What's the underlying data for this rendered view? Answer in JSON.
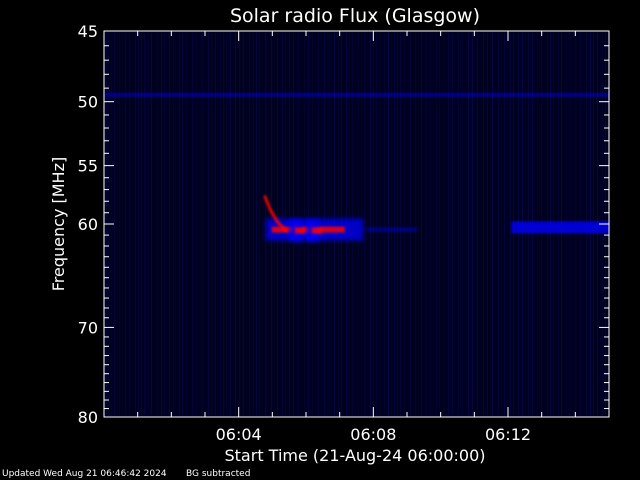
{
  "chart_data": {
    "type": "heatmap",
    "title": "Solar radio Flux (Glasgow)",
    "xlabel": "Start Time (21-Aug-24 06:00:00)",
    "ylabel": "Frequency [MHz]",
    "x_unit": "minutes after 06:00",
    "xlim": [
      0,
      15
    ],
    "ylim": [
      45,
      80
    ],
    "y_scale": "log",
    "y_inverted": true,
    "x_ticks": [
      {
        "value": 4,
        "label": "06:04"
      },
      {
        "value": 8,
        "label": "06:08"
      },
      {
        "value": 12,
        "label": "06:12"
      }
    ],
    "y_ticks": [
      {
        "value": 45,
        "label": "45"
      },
      {
        "value": 50,
        "label": "50"
      },
      {
        "value": 55,
        "label": "55"
      },
      {
        "value": 60,
        "label": "60"
      },
      {
        "value": 70,
        "label": "70"
      },
      {
        "value": 80,
        "label": "80"
      }
    ],
    "colors": {
      "background": "#000000",
      "plot_background": "#000020",
      "low": "#0000ff",
      "high": "#ff0000"
    },
    "features": [
      {
        "name": "emission-band",
        "x_start": 4.8,
        "x_end": 7.7,
        "freq": 60.5,
        "intensity": "high"
      },
      {
        "name": "emission-band",
        "x_start": 7.8,
        "x_end": 9.3,
        "freq": 60.5,
        "intensity": "low"
      },
      {
        "name": "emission-band",
        "x_start": 12.1,
        "x_end": 15.0,
        "freq": 60.3,
        "intensity": "medium"
      },
      {
        "name": "emission-band",
        "x_start": 5.5,
        "x_end": 5.9,
        "freq": 60.6,
        "intensity": "high"
      },
      {
        "name": "emission-band",
        "x_start": 6.0,
        "x_end": 6.4,
        "freq": 60.6,
        "intensity": "high"
      },
      {
        "name": "emission-band",
        "x_start": 0.0,
        "x_end": 15.0,
        "freq": 49.5,
        "intensity": "low"
      }
    ]
  },
  "footer": {
    "updated": "Updated Wed Aug 21 06:46:42 2024",
    "bg_note": "BG subtracted"
  }
}
